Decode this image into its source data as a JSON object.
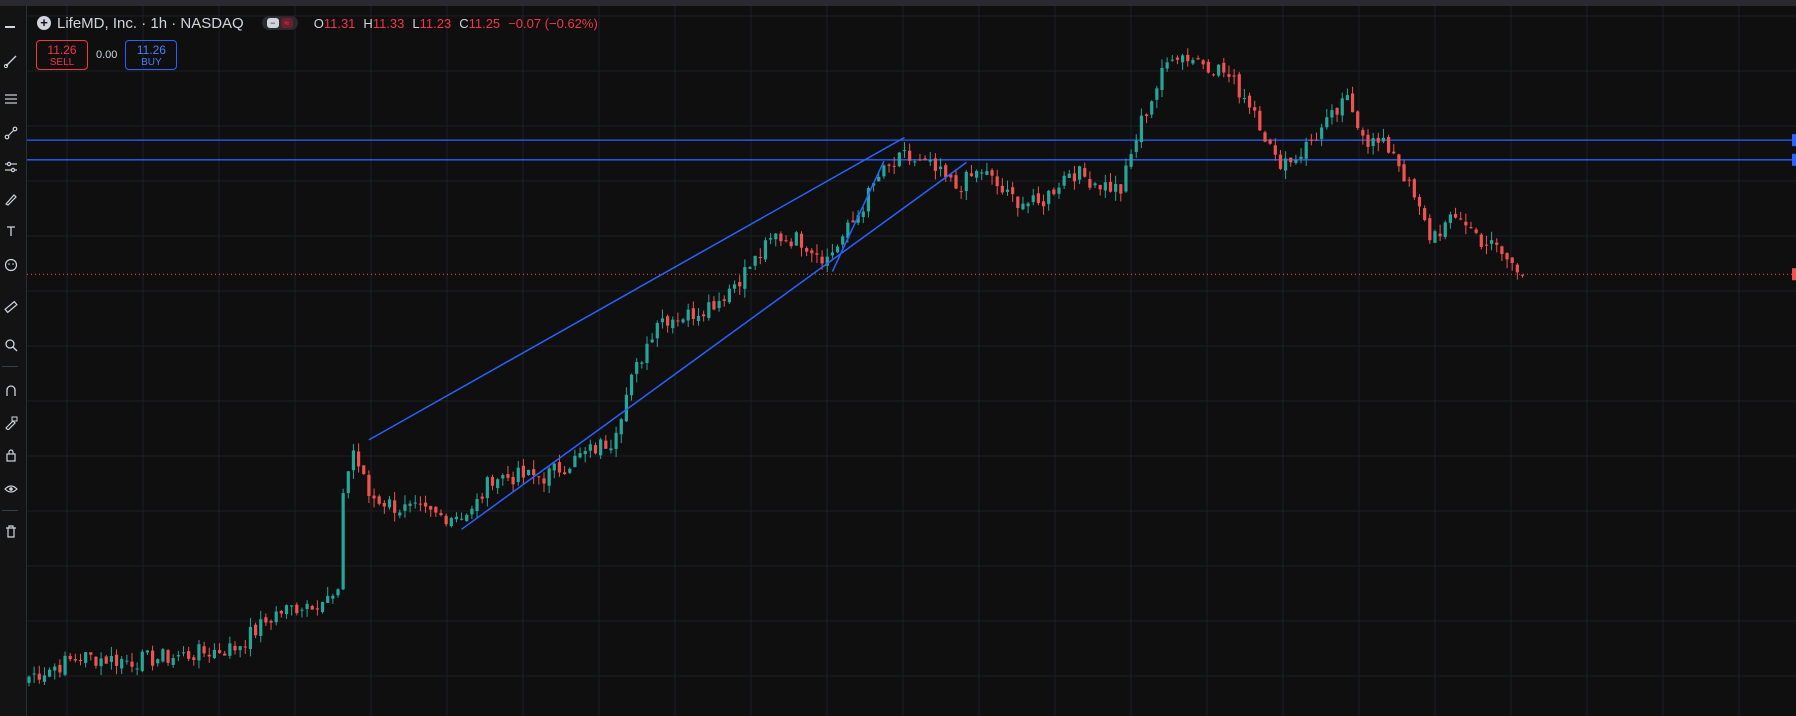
{
  "symbol": {
    "name": "LifeMD, Inc.",
    "interval": "1h",
    "exchange": "NASDAQ",
    "title": "LifeMD, Inc. · 1h · NASDAQ"
  },
  "ohlc": {
    "o_label": "O",
    "o": "11.31",
    "h_label": "H",
    "h": "11.33",
    "l_label": "L",
    "l": "11.23",
    "c_label": "C",
    "c": "11.25",
    "change": "−0.07 (−0.62%)"
  },
  "trade": {
    "sell_price": "11.26",
    "sell_label": "SELL",
    "spread": "0.00",
    "buy_price": "11.26",
    "buy_label": "BUY"
  },
  "toolbar_icons": [
    "cursor-icon",
    "trendline-icon",
    "fib-icon",
    "node-icon",
    "brush-icon",
    "pen-icon",
    "text-icon",
    "smile-icon",
    "ruler-icon",
    "zoom-icon",
    "magnet-icon",
    "lock-draw-icon",
    "lock-icon",
    "eye-icon",
    "trash-icon"
  ],
  "colors": {
    "up": "#26a69a",
    "down": "#ef5350",
    "drawing": "#2962ff",
    "background": "#0f0f10",
    "grid": "#1e1f23",
    "price_line": "#ef5350"
  },
  "chart_data": {
    "type": "candlestick",
    "timeframe": "1h",
    "last_close": 11.25,
    "price_range_visible": [
      7.9,
      13.3
    ],
    "horizontal_levels": [
      12.28,
      12.13
    ],
    "current_price_line": 11.26,
    "trend_channel": {
      "upper": [
        {
          "bar": 66,
          "price": 10.0
        },
        {
          "bar": 170,
          "price": 12.3
        }
      ],
      "lower": [
        {
          "bar": 84,
          "price": 9.32
        },
        {
          "bar": 182,
          "price": 12.11
        }
      ],
      "inner_leg": [
        {
          "bar": 156,
          "price": 11.28
        },
        {
          "bar": 166,
          "price": 12.12
        }
      ]
    },
    "anchors": [
      {
        "bar": 0,
        "price": 8.2
      },
      {
        "bar": 10,
        "price": 8.35
      },
      {
        "bar": 20,
        "price": 8.32
      },
      {
        "bar": 30,
        "price": 8.36
      },
      {
        "bar": 40,
        "price": 8.42
      },
      {
        "bar": 48,
        "price": 8.68
      },
      {
        "bar": 54,
        "price": 8.76
      },
      {
        "bar": 60,
        "price": 8.8
      },
      {
        "bar": 61,
        "price": 9.62
      },
      {
        "bar": 63,
        "price": 9.92
      },
      {
        "bar": 66,
        "price": 9.58
      },
      {
        "bar": 72,
        "price": 9.48
      },
      {
        "bar": 80,
        "price": 9.42
      },
      {
        "bar": 86,
        "price": 9.45
      },
      {
        "bar": 90,
        "price": 9.72
      },
      {
        "bar": 100,
        "price": 9.72
      },
      {
        "bar": 106,
        "price": 9.85
      },
      {
        "bar": 113,
        "price": 10.0
      },
      {
        "bar": 117,
        "price": 10.45
      },
      {
        "bar": 122,
        "price": 10.92
      },
      {
        "bar": 128,
        "price": 10.95
      },
      {
        "bar": 134,
        "price": 11.07
      },
      {
        "bar": 140,
        "price": 11.32
      },
      {
        "bar": 145,
        "price": 11.55
      },
      {
        "bar": 150,
        "price": 11.52
      },
      {
        "bar": 155,
        "price": 11.38
      },
      {
        "bar": 160,
        "price": 11.65
      },
      {
        "bar": 165,
        "price": 12.0
      },
      {
        "bar": 170,
        "price": 12.15
      },
      {
        "bar": 175,
        "price": 12.07
      },
      {
        "bar": 180,
        "price": 11.92
      },
      {
        "bar": 185,
        "price": 12.05
      },
      {
        "bar": 190,
        "price": 11.85
      },
      {
        "bar": 196,
        "price": 11.78
      },
      {
        "bar": 202,
        "price": 12.05
      },
      {
        "bar": 208,
        "price": 11.95
      },
      {
        "bar": 212,
        "price": 11.9
      },
      {
        "bar": 216,
        "price": 12.42
      },
      {
        "bar": 222,
        "price": 12.95
      },
      {
        "bar": 228,
        "price": 12.88
      },
      {
        "bar": 232,
        "price": 12.8
      },
      {
        "bar": 238,
        "price": 12.52
      },
      {
        "bar": 242,
        "price": 12.12
      },
      {
        "bar": 246,
        "price": 12.15
      },
      {
        "bar": 252,
        "price": 12.4
      },
      {
        "bar": 256,
        "price": 12.58
      },
      {
        "bar": 260,
        "price": 12.28
      },
      {
        "bar": 265,
        "price": 12.2
      },
      {
        "bar": 268,
        "price": 11.92
      },
      {
        "bar": 272,
        "price": 11.55
      },
      {
        "bar": 278,
        "price": 11.7
      },
      {
        "bar": 282,
        "price": 11.52
      },
      {
        "bar": 285,
        "price": 11.45
      },
      {
        "bar": 290,
        "price": 11.25
      }
    ],
    "total_bars": 325
  }
}
